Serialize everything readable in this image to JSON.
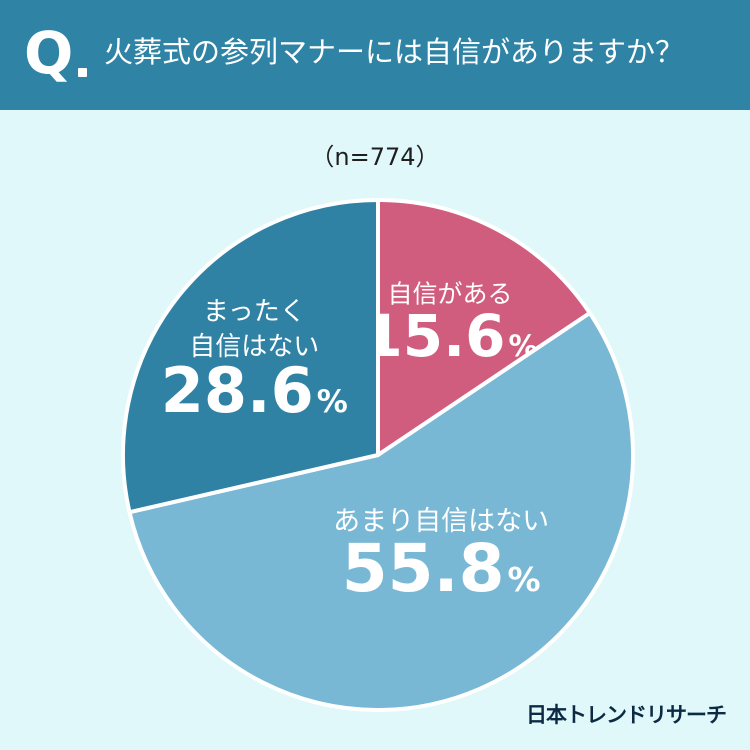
{
  "header": {
    "q_label": "Q",
    "question": "火葬式の参列マナーには自信がありますか？"
  },
  "sample_size": "（n=774）",
  "footer": {
    "brand": "日本トレンドリサーチ"
  },
  "colors": {
    "header_bg": "#2f84a6",
    "page_bg": "#e0f8fa",
    "slice_confident": "#d05c7e",
    "slice_not_very": "#79b8d4",
    "slice_not_at_all": "#2f82a4"
  },
  "chart_data": {
    "type": "pie",
    "start_angle_deg": 0,
    "direction": "clockwise",
    "slices": [
      {
        "label": "自信がある",
        "value": 15.6,
        "value_text": "15.6",
        "unit": "%",
        "color": "#d05c7e"
      },
      {
        "label": "あまり自信はない",
        "value": 55.8,
        "value_text": "55.8",
        "unit": "%",
        "color": "#79b8d4"
      },
      {
        "label": "まったく\n自信はない",
        "value": 28.6,
        "value_text": "28.6",
        "unit": "%",
        "color": "#2f82a4"
      }
    ]
  }
}
